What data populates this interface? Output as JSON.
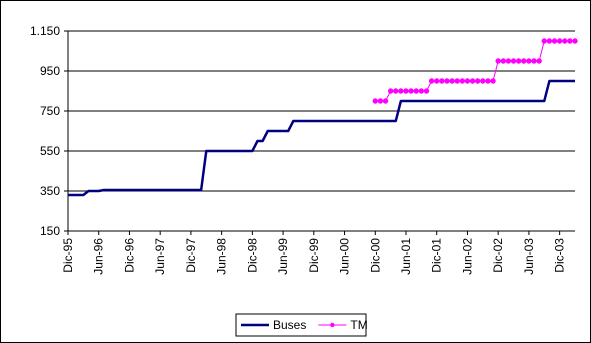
{
  "chart_data": {
    "type": "line",
    "title": "",
    "xlabel": "",
    "ylabel": "",
    "ylim": [
      150,
      1150
    ],
    "y_ticks": [
      "150",
      "350",
      "550",
      "750",
      "950",
      "1.150"
    ],
    "x_ticks": [
      "Dic-95",
      "Jun-96",
      "Dic-96",
      "Jun-97",
      "Dic-97",
      "Jun-98",
      "Dic-98",
      "Jun-99",
      "Dic-99",
      "Jun-00",
      "Dic-00",
      "Jun-01",
      "Dic-01",
      "Jun-02",
      "Dic-02",
      "Jun-03",
      "Dic-03"
    ],
    "x_range": [
      "Dic-95",
      "Mar-04"
    ],
    "grid": "horizontal",
    "legend_position": "bottom",
    "series": [
      {
        "name": "Buses",
        "color": "#000080",
        "marker": "none",
        "points": [
          [
            "Dic-95",
            330
          ],
          [
            "Mar-96",
            330
          ],
          [
            "Abr-96",
            350
          ],
          [
            "Jun-96",
            350
          ],
          [
            "Jul-96",
            355
          ],
          [
            "Feb-98",
            355
          ],
          [
            "Mar-98",
            550
          ],
          [
            "Dic-98",
            550
          ],
          [
            "Ene-99",
            600
          ],
          [
            "Feb-99",
            600
          ],
          [
            "Mar-99",
            650
          ],
          [
            "Jul-99",
            650
          ],
          [
            "Ago-99",
            700
          ],
          [
            "Abr-01",
            700
          ],
          [
            "May-01",
            800
          ],
          [
            "Sep-03",
            800
          ],
          [
            "Oct-03",
            900
          ],
          [
            "Mar-04",
            900
          ]
        ]
      },
      {
        "name": "TM",
        "color": "#ff00ff",
        "marker": "circle",
        "points": [
          [
            "Dic-00",
            800
          ],
          [
            "Ene-01",
            800
          ],
          [
            "Feb-01",
            800
          ],
          [
            "Mar-01",
            850
          ],
          [
            "Abr-01",
            850
          ],
          [
            "May-01",
            850
          ],
          [
            "Jun-01",
            850
          ],
          [
            "Jul-01",
            850
          ],
          [
            "Ago-01",
            850
          ],
          [
            "Sep-01",
            850
          ],
          [
            "Oct-01",
            850
          ],
          [
            "Nov-01",
            900
          ],
          [
            "Dic-01",
            900
          ],
          [
            "Ene-02",
            900
          ],
          [
            "Feb-02",
            900
          ],
          [
            "Mar-02",
            900
          ],
          [
            "Abr-02",
            900
          ],
          [
            "May-02",
            900
          ],
          [
            "Jun-02",
            900
          ],
          [
            "Jul-02",
            900
          ],
          [
            "Ago-02",
            900
          ],
          [
            "Sep-02",
            900
          ],
          [
            "Oct-02",
            900
          ],
          [
            "Nov-02",
            900
          ],
          [
            "Dic-02",
            1000
          ],
          [
            "Ene-03",
            1000
          ],
          [
            "Feb-03",
            1000
          ],
          [
            "Mar-03",
            1000
          ],
          [
            "Abr-03",
            1000
          ],
          [
            "May-03",
            1000
          ],
          [
            "Jun-03",
            1000
          ],
          [
            "Jul-03",
            1000
          ],
          [
            "Ago-03",
            1000
          ],
          [
            "Sep-03",
            1100
          ],
          [
            "Oct-03",
            1100
          ],
          [
            "Nov-03",
            1100
          ],
          [
            "Dic-03",
            1100
          ],
          [
            "Ene-04",
            1100
          ],
          [
            "Feb-04",
            1100
          ],
          [
            "Mar-04",
            1100
          ]
        ]
      }
    ]
  }
}
